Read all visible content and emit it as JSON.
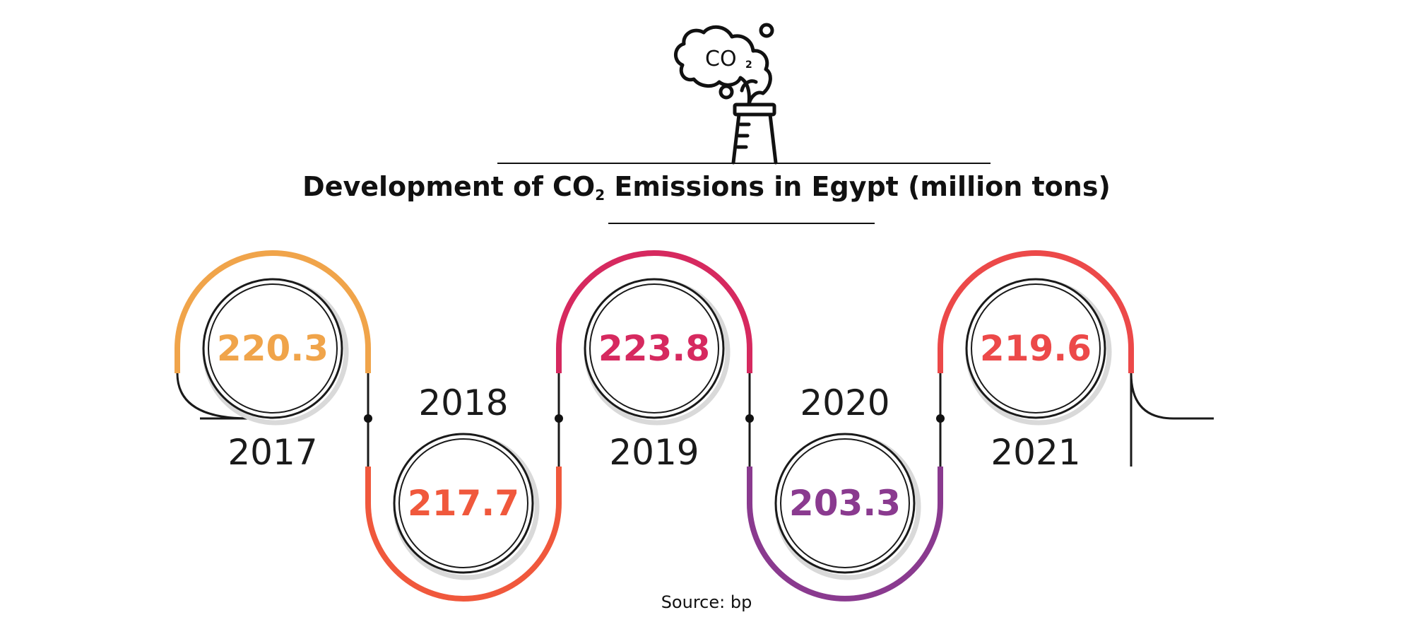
{
  "title": {
    "prefix": "Development of CO",
    "subscript": "2",
    "suffix": " Emissions in Egypt (million tons)"
  },
  "icon": {
    "name": "co2-factory-chimney-icon",
    "label": "CO",
    "label_subscript": "2"
  },
  "source": "Source: bp",
  "colors": {
    "2017": "#F0A44A",
    "2018": "#F0583C",
    "2019": "#D6295F",
    "2020": "#8A3A8F",
    "2021": "#EC4949"
  },
  "chart_data": {
    "type": "timeline",
    "title": "Development of CO2 Emissions in Egypt (million tons)",
    "categories": [
      "2017",
      "2018",
      "2019",
      "2020",
      "2021"
    ],
    "values": [
      220.3,
      217.7,
      223.8,
      203.3,
      219.6
    ],
    "labels": [
      "220.3",
      "217.7",
      "223.8",
      "203.3",
      "219.6"
    ],
    "unit": "million tons",
    "source": "Source: bp"
  }
}
